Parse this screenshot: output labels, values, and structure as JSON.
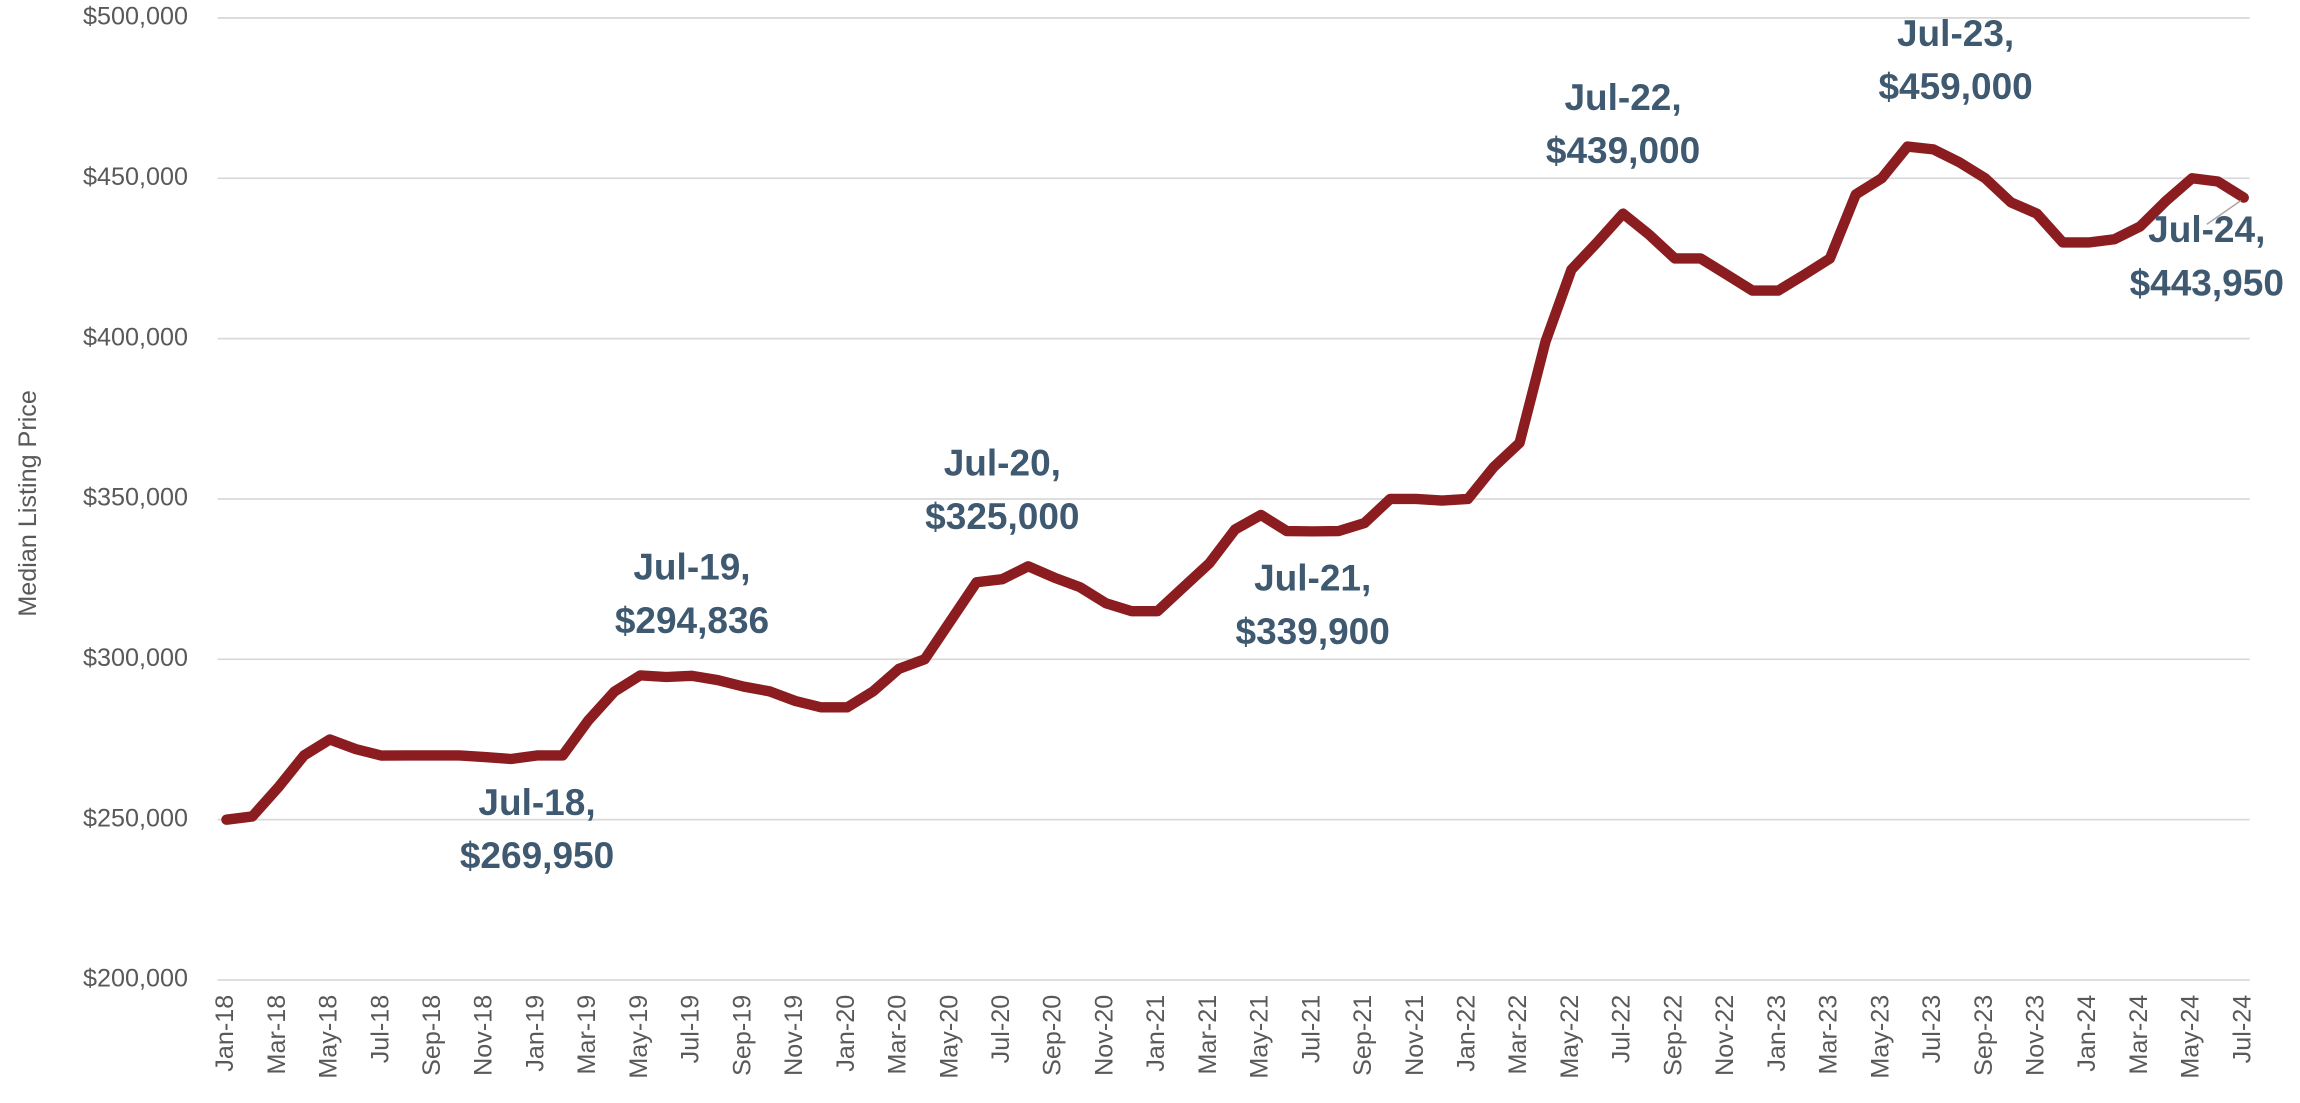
{
  "chart_data": {
    "type": "line",
    "yaxis_label": "Median Listing Price",
    "categories": [
      "Jan-18",
      null,
      "Mar-18",
      null,
      "May-18",
      null,
      "Jul-18",
      null,
      "Sep-18",
      null,
      "Nov-18",
      null,
      "Jan-19",
      null,
      "Mar-19",
      null,
      "May-19",
      null,
      "Jul-19",
      null,
      "Sep-19",
      null,
      "Nov-19",
      null,
      "Jan-20",
      null,
      "Mar-20",
      null,
      "May-20",
      null,
      "Jul-20",
      null,
      "Sep-20",
      null,
      "Nov-20",
      null,
      "Jan-21",
      null,
      "Mar-21",
      null,
      "May-21",
      null,
      "Jul-21",
      null,
      "Sep-21",
      null,
      "Nov-21",
      null,
      "Jan-22",
      null,
      "Mar-22",
      null,
      "May-22",
      null,
      "Jul-22",
      null,
      "Sep-22",
      null,
      "Nov-22",
      null,
      "Jan-23",
      null,
      "Mar-23",
      null,
      "May-23",
      null,
      "Jul-23",
      null,
      "Sep-23",
      null,
      "Nov-23",
      null,
      "Jan-24",
      null,
      "Mar-24",
      null,
      "May-24",
      null,
      "Jul-24"
    ],
    "series": [
      {
        "name": "Median Listing Price",
        "color": "#8b1c1f",
        "values": [
          250000,
          251000,
          260000,
          270000,
          275000,
          272000,
          269950,
          270000,
          270000,
          270000,
          269500,
          268900,
          270000,
          270000,
          281000,
          289900,
          295000,
          294500,
          294836,
          293500,
          291500,
          290000,
          287000,
          285000,
          285000,
          290000,
          297000,
          300000,
          312000,
          324000,
          325000,
          329000,
          325500,
          322500,
          317500,
          315000,
          315000,
          322500,
          329900,
          340500,
          345000,
          340000,
          339900,
          340000,
          342500,
          350000,
          350000,
          349500,
          350000,
          359900,
          367500,
          399000,
          421500,
          430000,
          439000,
          432500,
          425000,
          425000,
          420000,
          415000,
          415000,
          419900,
          425000,
          445000,
          450000,
          459900,
          459000,
          455000,
          450000,
          442500,
          439000,
          430000,
          430000,
          431000,
          435000,
          443000,
          450000,
          449000,
          443950
        ],
        "value_labels": [
          null,
          null,
          null,
          null,
          null,
          null,
          [
            "Jul-18,",
            "$269,950"
          ],
          null,
          null,
          null,
          null,
          null,
          null,
          null,
          null,
          null,
          null,
          null,
          [
            "Jul-19,",
            "$294,836"
          ],
          null,
          null,
          null,
          null,
          null,
          null,
          null,
          null,
          null,
          null,
          null,
          [
            "Jul-20,",
            "$325,000"
          ],
          null,
          null,
          null,
          null,
          null,
          null,
          null,
          null,
          null,
          null,
          null,
          [
            "Jul-21,",
            "$339,900"
          ],
          null,
          null,
          null,
          null,
          null,
          null,
          null,
          null,
          null,
          null,
          null,
          [
            "Jul-22,",
            "$439,000"
          ],
          null,
          null,
          null,
          null,
          null,
          null,
          null,
          null,
          null,
          null,
          null,
          [
            "Jul-23,",
            "$459,000"
          ],
          null,
          null,
          null,
          null,
          null,
          null,
          null,
          null,
          null,
          null,
          null,
          [
            "Jul-24,",
            "$443,950"
          ]
        ]
      }
    ],
    "ylim": [
      200000,
      500000
    ],
    "yticks": [
      {
        "value": 200000,
        "label": "$200,000"
      },
      {
        "value": 250000,
        "label": "$250,000"
      },
      {
        "value": 300000,
        "label": "$300,000"
      },
      {
        "value": 350000,
        "label": "$350,000"
      },
      {
        "value": 400000,
        "label": "$400,000"
      },
      {
        "value": 450000,
        "label": "$450,000"
      },
      {
        "value": 500000,
        "label": "$500,000"
      }
    ],
    "grid": true
  }
}
